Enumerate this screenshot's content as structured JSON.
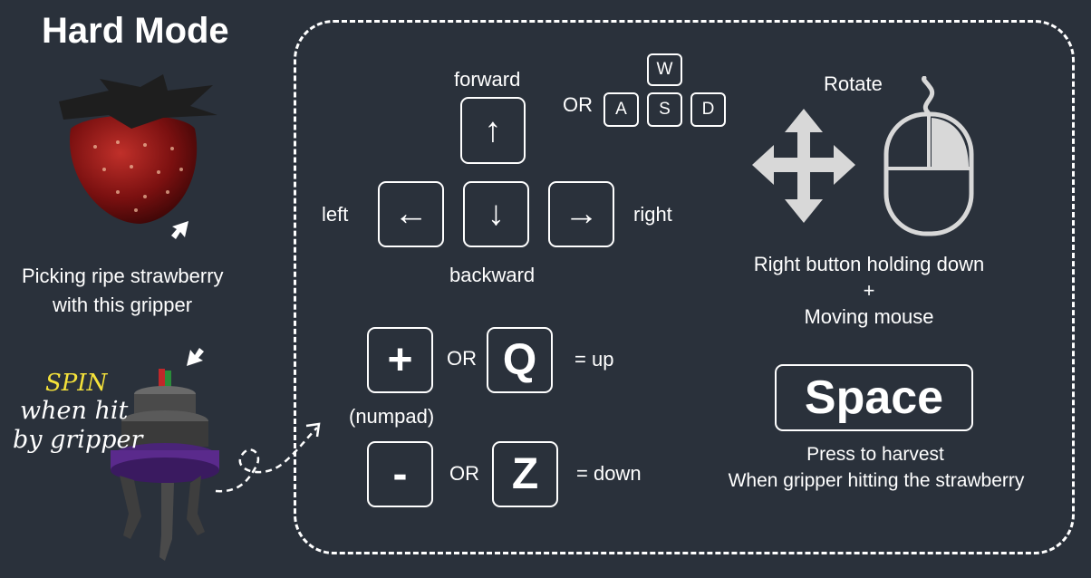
{
  "header": {
    "title": "Hard Mode"
  },
  "left_panel": {
    "pick_caption_line1": "Picking ripe strawberry",
    "pick_caption_line2": "with this gripper",
    "spin_word": "SPIN",
    "spin_line2": "when hit",
    "spin_line3": "by gripper"
  },
  "movement": {
    "forward_label": "forward",
    "backward_label": "backward",
    "left_label": "left",
    "right_label": "right",
    "up_key": "↑",
    "down_key": "↓",
    "left_key": "←",
    "right_key": "→",
    "or_label": "OR",
    "wasd": {
      "w": "W",
      "a": "A",
      "s": "S",
      "d": "D"
    }
  },
  "vertical": {
    "plus_key": "+",
    "minus_key": "-",
    "q_key": "Q",
    "z_key": "Z",
    "or_label": "OR",
    "up_label": "= up",
    "down_label": "= down",
    "numpad_label": "(numpad)"
  },
  "rotate": {
    "title": "Rotate",
    "line1": "Right button holding down",
    "line2": "+",
    "line3": "Moving mouse"
  },
  "harvest": {
    "key_label": "Space",
    "line1": "Press to harvest",
    "line2": "When gripper hitting the strawberry"
  },
  "colors": {
    "background": "#2a313b",
    "text": "#ffffff",
    "spin": "#f5e23a",
    "strawberry": "#8c1414",
    "gripper_ring": "#5a2a8c"
  },
  "icons": [
    "strawberry-image",
    "gripper-image",
    "pointer-arrow-icon",
    "move-cross-icon",
    "mouse-icon"
  ]
}
